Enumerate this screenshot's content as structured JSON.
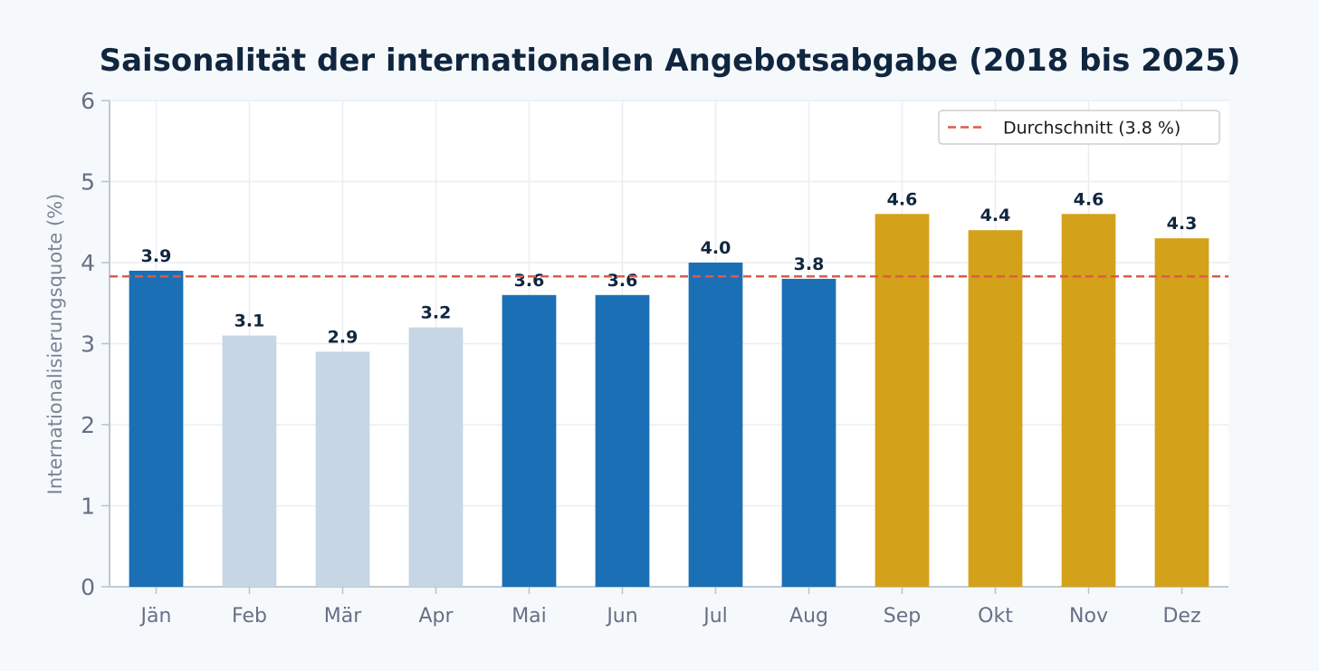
{
  "chart_data": {
    "type": "bar",
    "title": "Saisonalität der internationalen Angebotsabgabe (2018 bis 2025)",
    "xlabel": "",
    "ylabel": "Internationalisierungsquote (%)",
    "ylim": [
      0,
      6
    ],
    "yticks": [
      "0",
      "1",
      "2",
      "3",
      "4",
      "5",
      "6"
    ],
    "categories": [
      "Jän",
      "Feb",
      "Mär",
      "Apr",
      "Mai",
      "Jun",
      "Jul",
      "Aug",
      "Sep",
      "Okt",
      "Nov",
      "Dez"
    ],
    "values": [
      3.9,
      3.1,
      2.9,
      3.2,
      3.6,
      3.6,
      4.0,
      3.8,
      4.6,
      4.4,
      4.6,
      4.3
    ],
    "value_labels": [
      "3.9",
      "3.1",
      "2.9",
      "3.2",
      "3.6",
      "3.6",
      "4.0",
      "3.8",
      "4.6",
      "4.4",
      "4.6",
      "4.3"
    ],
    "bar_colors": [
      "#1b6fb5",
      "#c6d6e5",
      "#c6d6e5",
      "#c6d6e5",
      "#1b6fb5",
      "#1b6fb5",
      "#1b6fb5",
      "#1b6fb5",
      "#d4a11a",
      "#d4a11a",
      "#d4a11a",
      "#d4a11a"
    ],
    "reference_line": {
      "value": 3.83,
      "label": "Durchschnitt (3.8 %)",
      "color": "#de5a4a",
      "style": "dashed"
    },
    "grid": true,
    "legend_position": "top-right"
  }
}
